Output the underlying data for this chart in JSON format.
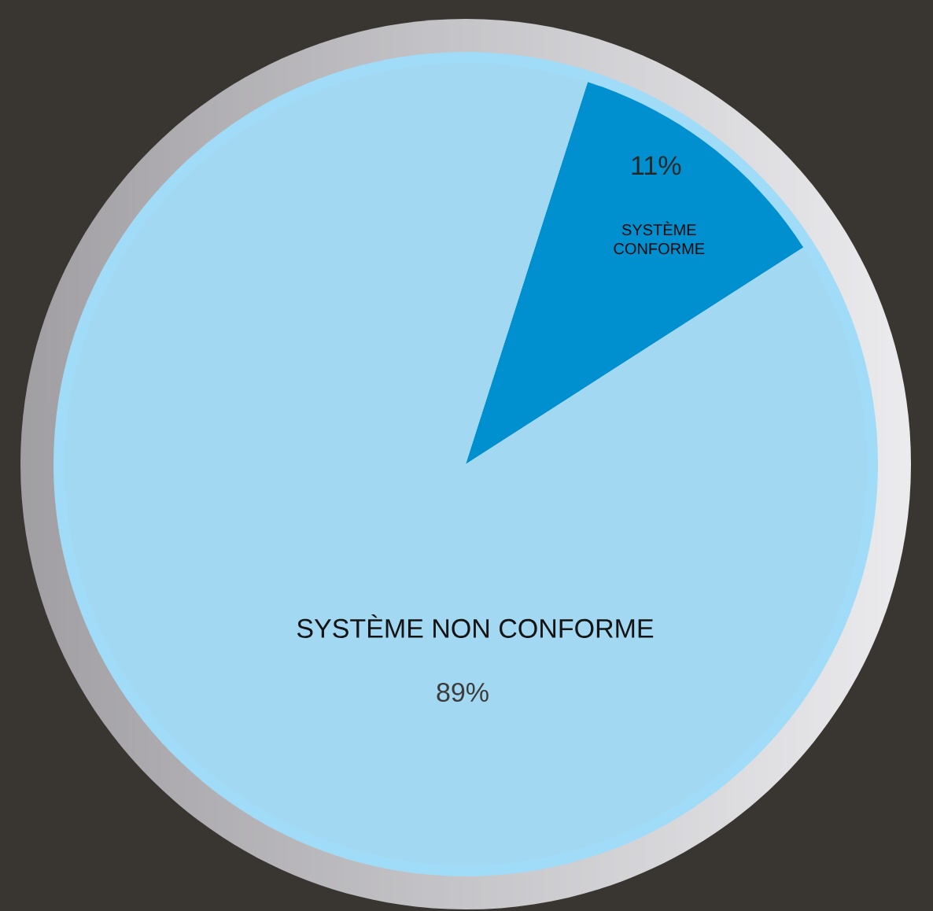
{
  "chart_data": {
    "type": "pie",
    "categories": [
      "SYSTÈME CONFORME",
      "SYSTÈME NON CONFORME"
    ],
    "values": [
      11,
      89
    ],
    "colors": [
      "#0090d0",
      "#a3d8f2"
    ],
    "value_labels": [
      "11%",
      "89%"
    ]
  }
}
